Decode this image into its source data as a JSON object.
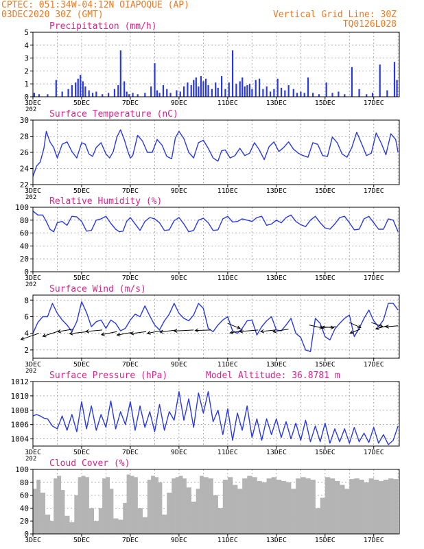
{
  "header": {
    "line1": "CPTEC:   051:34W-04:12N   OIAPOQUE (AP)",
    "line2": "03DEC2020 30Z (GMT)",
    "grid_note": "Vertical Grid Line: 30Z",
    "model": "TQ0126L028"
  },
  "colors": {
    "header_text": "#f07820",
    "panel_title": "#e0208c",
    "line": "#2838e8",
    "bar": "#2838e8",
    "cloud": "#b4b4b4",
    "arrow": "#000000",
    "grid": "#9a9a9a"
  },
  "x_ticks": [
    "3DEC",
    "5DEC",
    "7DEC",
    "9DEC",
    "11DEC",
    "13DEC",
    "15DEC",
    "17DEC"
  ],
  "year_fragment": "202",
  "chart_data": [
    {
      "id": "precip",
      "type": "bar",
      "title": "Precipitation (mm/h)",
      "ylim": [
        0,
        5
      ],
      "yticks": [
        "0",
        "1",
        "2",
        "3",
        "4",
        "5"
      ],
      "x": [
        3.05,
        3.25,
        3.6,
        3.95,
        4.2,
        4.45,
        4.6,
        4.75,
        4.85,
        4.95,
        5.05,
        5.15,
        5.3,
        5.45,
        5.6,
        5.85,
        6.1,
        6.35,
        6.5,
        6.6,
        6.75,
        6.85,
        6.95,
        7.1,
        7.3,
        7.6,
        7.85,
        8.0,
        8.1,
        8.2,
        8.35,
        8.5,
        8.65,
        8.9,
        9.05,
        9.2,
        9.35,
        9.5,
        9.6,
        9.7,
        9.8,
        9.9,
        10.0,
        10.1,
        10.2,
        10.35,
        10.5,
        10.6,
        10.75,
        10.9,
        11.05,
        11.2,
        11.35,
        11.5,
        11.6,
        11.7,
        11.8,
        11.9,
        12.0,
        12.15,
        12.3,
        12.45,
        12.6,
        12.75,
        12.9,
        13.05,
        13.2,
        13.35,
        13.5,
        13.7,
        13.85,
        14.0,
        14.15,
        14.3,
        14.5,
        14.75,
        15.05,
        15.3,
        15.55,
        15.8,
        16.1,
        16.4,
        16.7,
        16.95,
        17.25,
        17.55,
        17.85,
        17.95
      ],
      "values": [
        0.3,
        0.2,
        0.2,
        1.3,
        0.4,
        0.6,
        0.9,
        1.1,
        1.4,
        1.7,
        1.2,
        0.8,
        0.5,
        0.3,
        0.4,
        0.2,
        0.3,
        0.6,
        0.9,
        3.6,
        1.2,
        0.4,
        0.2,
        0.3,
        0.2,
        0.3,
        0.8,
        2.6,
        0.5,
        0.3,
        0.9,
        0.6,
        0.3,
        0.5,
        0.4,
        0.8,
        1.1,
        0.9,
        1.3,
        1.5,
        0.8,
        1.6,
        1.2,
        1.4,
        0.9,
        0.6,
        1.1,
        0.7,
        1.6,
        0.6,
        1.1,
        3.6,
        1.0,
        1.2,
        1.5,
        0.8,
        0.9,
        1.0,
        0.6,
        1.3,
        1.4,
        0.6,
        0.8,
        0.4,
        0.6,
        1.4,
        0.7,
        0.5,
        0.9,
        0.6,
        0.3,
        0.4,
        0.3,
        1.5,
        0.3,
        0.2,
        1.1,
        0.3,
        0.4,
        0.2,
        2.3,
        0.6,
        0.2,
        0.3,
        2.5,
        0.5,
        2.7,
        1.3
      ],
      "xlim": [
        3,
        18.05
      ]
    },
    {
      "id": "temp",
      "type": "line",
      "title": "Surface Temperature (nC)",
      "ylim": [
        22,
        30
      ],
      "yticks": [
        "22",
        "24",
        "26",
        "28",
        "30"
      ],
      "x": [
        3.0,
        3.15,
        3.3,
        3.45,
        3.55,
        3.7,
        3.85,
        4.0,
        4.2,
        4.4,
        4.6,
        4.8,
        5.0,
        5.15,
        5.3,
        5.45,
        5.6,
        5.8,
        6.0,
        6.15,
        6.3,
        6.45,
        6.6,
        6.75,
        6.9,
        7.0,
        7.1,
        7.3,
        7.5,
        7.7,
        7.9,
        8.1,
        8.3,
        8.5,
        8.7,
        8.85,
        9.0,
        9.2,
        9.4,
        9.6,
        9.8,
        10.0,
        10.2,
        10.4,
        10.6,
        10.75,
        10.9,
        11.1,
        11.3,
        11.5,
        11.7,
        11.9,
        12.1,
        12.3,
        12.5,
        12.7,
        12.9,
        13.1,
        13.3,
        13.5,
        13.7,
        13.9,
        14.1,
        14.3,
        14.5,
        14.7,
        14.9,
        15.1,
        15.3,
        15.5,
        15.7,
        15.9,
        16.1,
        16.3,
        16.5,
        16.7,
        16.9,
        17.1,
        17.3,
        17.5,
        17.7,
        17.9,
        18.0
      ],
      "values": [
        23.0,
        24.3,
        24.8,
        26.5,
        28.6,
        27.3,
        26.6,
        25.3,
        27.0,
        27.3,
        26.1,
        25.3,
        27.2,
        27.0,
        25.8,
        25.5,
        26.6,
        27.2,
        25.8,
        25.3,
        26.1,
        27.9,
        28.8,
        27.6,
        26.1,
        25.3,
        25.6,
        28.1,
        27.4,
        26.0,
        26.0,
        27.6,
        26.9,
        25.5,
        25.2,
        27.8,
        28.6,
        27.7,
        26.0,
        25.3,
        27.2,
        27.5,
        26.5,
        25.3,
        24.9,
        26.2,
        26.3,
        25.3,
        25.6,
        26.5,
        25.6,
        25.9,
        27.2,
        26.3,
        25.1,
        26.7,
        27.3,
        26.1,
        26.6,
        27.3,
        26.4,
        25.9,
        25.6,
        25.4,
        27.2,
        27.0,
        25.6,
        25.5,
        27.9,
        27.2,
        25.8,
        25.4,
        26.6,
        28.5,
        27.1,
        25.6,
        25.9,
        28.4,
        27.2,
        25.7,
        28.3,
        27.6,
        26.0
      ],
      "xlim": [
        3,
        18.05
      ]
    },
    {
      "id": "rh",
      "type": "line",
      "title": "Relative Humidity (%)",
      "ylim": [
        0,
        100
      ],
      "yticks": [
        "0",
        "20",
        "40",
        "60",
        "80",
        "100"
      ],
      "x": [
        3.0,
        3.2,
        3.4,
        3.55,
        3.7,
        3.85,
        4.0,
        4.2,
        4.4,
        4.6,
        4.8,
        5.0,
        5.2,
        5.4,
        5.6,
        5.8,
        6.0,
        6.2,
        6.4,
        6.55,
        6.7,
        6.85,
        7.0,
        7.2,
        7.4,
        7.6,
        7.8,
        8.0,
        8.2,
        8.4,
        8.6,
        8.8,
        9.0,
        9.2,
        9.4,
        9.6,
        9.8,
        10.0,
        10.2,
        10.4,
        10.6,
        10.8,
        11.0,
        11.2,
        11.4,
        11.6,
        11.8,
        12.0,
        12.2,
        12.4,
        12.6,
        12.8,
        13.0,
        13.2,
        13.4,
        13.6,
        13.8,
        14.0,
        14.2,
        14.4,
        14.6,
        14.8,
        15.0,
        15.2,
        15.4,
        15.6,
        15.8,
        16.0,
        16.2,
        16.4,
        16.6,
        16.8,
        17.0,
        17.2,
        17.4,
        17.6,
        17.8,
        18.0
      ],
      "values": [
        94,
        88,
        88,
        78,
        66,
        62,
        76,
        78,
        72,
        86,
        85,
        78,
        63,
        64,
        80,
        82,
        86,
        75,
        66,
        62,
        63,
        78,
        84,
        74,
        64,
        78,
        84,
        82,
        76,
        64,
        65,
        79,
        84,
        74,
        62,
        64,
        80,
        83,
        76,
        64,
        65,
        82,
        86,
        77,
        78,
        82,
        80,
        78,
        84,
        86,
        72,
        74,
        80,
        76,
        84,
        88,
        78,
        73,
        70,
        80,
        86,
        76,
        68,
        66,
        74,
        84,
        86,
        76,
        65,
        66,
        82,
        86,
        76,
        66,
        66,
        82,
        80,
        62
      ],
      "xlim": [
        3,
        18.05
      ]
    },
    {
      "id": "wind",
      "type": "line",
      "title": "Surface Wind (m/s)",
      "ylim": [
        1,
        8.6
      ],
      "yticks": [
        "2",
        "4",
        "6",
        "8"
      ],
      "x": [
        3.0,
        3.2,
        3.4,
        3.6,
        3.8,
        4.0,
        4.2,
        4.4,
        4.6,
        4.8,
        5.0,
        5.2,
        5.4,
        5.6,
        5.8,
        6.0,
        6.2,
        6.4,
        6.6,
        6.8,
        7.0,
        7.2,
        7.4,
        7.6,
        7.8,
        8.0,
        8.2,
        8.4,
        8.6,
        8.8,
        9.0,
        9.2,
        9.4,
        9.6,
        9.8,
        10.0,
        10.2,
        10.4,
        10.6,
        10.8,
        11.0,
        11.2,
        11.4,
        11.6,
        11.8,
        12.0,
        12.2,
        12.4,
        12.6,
        12.8,
        13.0,
        13.2,
        13.4,
        13.6,
        13.8,
        14.0,
        14.2,
        14.4,
        14.6,
        14.8,
        15.0,
        15.2,
        15.4,
        15.6,
        15.8,
        16.0,
        16.2,
        16.4,
        16.6,
        16.8,
        17.0,
        17.2,
        17.4,
        17.6,
        17.8,
        18.0
      ],
      "values": [
        4.0,
        5.3,
        6.0,
        6.0,
        7.6,
        6.4,
        5.6,
        5.0,
        4.2,
        5.4,
        7.8,
        6.5,
        4.8,
        5.4,
        5.6,
        4.6,
        5.6,
        5.2,
        4.3,
        4.6,
        5.6,
        6.3,
        6.0,
        7.3,
        6.1,
        5.0,
        4.4,
        5.5,
        6.3,
        7.6,
        6.4,
        5.8,
        5.5,
        6.2,
        7.6,
        7.0,
        4.6,
        4.2,
        5.0,
        5.6,
        6.0,
        4.3,
        4.0,
        4.6,
        5.5,
        5.6,
        3.8,
        4.8,
        5.5,
        6.0,
        4.4,
        4.3,
        5.0,
        5.8,
        4.0,
        3.5,
        2.0,
        1.8,
        5.8,
        5.2,
        3.6,
        3.2,
        4.5,
        5.2,
        5.8,
        6.2,
        3.6,
        4.6,
        5.8,
        6.8,
        5.5,
        4.8,
        5.6,
        7.6,
        7.6,
        6.8
      ],
      "arrows": [
        {
          "x": 3.25,
          "y": 4.0,
          "u": -3.5,
          "v": -1.2
        },
        {
          "x": 4.0,
          "y": 4.2,
          "u": -2.8,
          "v": -0.9
        },
        {
          "x": 4.65,
          "y": 4.5,
          "u": -3.0,
          "v": -0.5
        },
        {
          "x": 5.25,
          "y": 4.2,
          "u": -3.5,
          "v": -0.4
        },
        {
          "x": 5.85,
          "y": 4.4,
          "u": -3.2,
          "v": -0.3
        },
        {
          "x": 6.45,
          "y": 4.2,
          "u": -3.0,
          "v": -0.6
        },
        {
          "x": 7.05,
          "y": 4.1,
          "u": -2.8,
          "v": -0.5
        },
        {
          "x": 7.65,
          "y": 4.2,
          "u": -3.0,
          "v": -0.4
        },
        {
          "x": 8.25,
          "y": 4.3,
          "u": -2.6,
          "v": -0.5
        },
        {
          "x": 8.9,
          "y": 4.4,
          "u": -3.2,
          "v": -0.4
        },
        {
          "x": 9.6,
          "y": 4.4,
          "u": -3.8,
          "v": -0.2
        },
        {
          "x": 10.3,
          "y": 4.4,
          "u": -3.0,
          "v": -0.1
        },
        {
          "x": 11.0,
          "y": 5.2,
          "u": 2.4,
          "v": -1.0
        },
        {
          "x": 11.65,
          "y": 4.3,
          "u": -2.6,
          "v": -0.4
        },
        {
          "x": 12.25,
          "y": 4.4,
          "u": -3.6,
          "v": -0.3
        },
        {
          "x": 12.95,
          "y": 4.4,
          "u": -2.8,
          "v": -0.3
        },
        {
          "x": 13.5,
          "y": 4.5,
          "u": -3.0,
          "v": -0.5
        },
        {
          "x": 14.35,
          "y": 5.0,
          "u": 2.6,
          "v": -0.6
        },
        {
          "x": 14.85,
          "y": 4.8,
          "u": 2.4,
          "v": -0.2
        },
        {
          "x": 15.45,
          "y": 4.8,
          "u": -2.8,
          "v": -0.2
        },
        {
          "x": 16.0,
          "y": 5.3,
          "u": 2.2,
          "v": -1.0
        },
        {
          "x": 16.45,
          "y": 4.5,
          "u": -2.0,
          "v": -0.8
        },
        {
          "x": 16.9,
          "y": 5.3,
          "u": 2.2,
          "v": -0.8
        },
        {
          "x": 17.55,
          "y": 4.9,
          "u": -2.2,
          "v": -0.6
        },
        {
          "x": 18.0,
          "y": 4.9,
          "u": -2.4,
          "v": -0.2
        }
      ],
      "xlim": [
        3,
        18.05
      ]
    },
    {
      "id": "pressure",
      "type": "line",
      "title": "Surface Pressure (hPa)",
      "annotation": "Model Altitude: 36.8781 m",
      "ylim": [
        1003,
        1012
      ],
      "yticks": [
        "1004",
        "1006",
        "1008",
        "1010",
        "1012"
      ],
      "x": [
        3.0,
        3.15,
        3.3,
        3.45,
        3.6,
        3.8,
        4.0,
        4.2,
        4.4,
        4.6,
        4.8,
        5.0,
        5.2,
        5.4,
        5.6,
        5.8,
        6.0,
        6.2,
        6.4,
        6.6,
        6.8,
        7.0,
        7.2,
        7.4,
        7.6,
        7.8,
        8.0,
        8.2,
        8.4,
        8.6,
        8.8,
        9.0,
        9.2,
        9.4,
        9.6,
        9.8,
        10.0,
        10.2,
        10.4,
        10.6,
        10.8,
        11.0,
        11.2,
        11.4,
        11.6,
        11.8,
        12.0,
        12.2,
        12.4,
        12.6,
        12.8,
        13.0,
        13.2,
        13.4,
        13.6,
        13.8,
        14.0,
        14.2,
        14.4,
        14.6,
        14.8,
        15.0,
        15.2,
        15.4,
        15.6,
        15.8,
        16.0,
        16.2,
        16.4,
        16.6,
        16.8,
        17.0,
        17.2,
        17.4,
        17.6,
        17.8,
        18.0
      ],
      "values": [
        1007.2,
        1007.4,
        1007.2,
        1006.9,
        1006.8,
        1005.8,
        1005.4,
        1007.2,
        1005.2,
        1007.4,
        1005.0,
        1009.2,
        1005.4,
        1008.6,
        1005.2,
        1007.4,
        1005.6,
        1009.3,
        1005.4,
        1007.8,
        1006.0,
        1009.2,
        1005.2,
        1008.6,
        1005.6,
        1007.8,
        1005.0,
        1008.8,
        1005.2,
        1007.8,
        1006.6,
        1010.6,
        1006.6,
        1009.6,
        1005.6,
        1010.4,
        1007.6,
        1010.6,
        1006.4,
        1008.0,
        1004.6,
        1008.2,
        1003.8,
        1007.6,
        1005.2,
        1008.6,
        1004.2,
        1006.8,
        1003.8,
        1006.8,
        1004.6,
        1006.8,
        1004.2,
        1006.4,
        1004.0,
        1006.2,
        1003.8,
        1006.6,
        1003.6,
        1005.8,
        1003.6,
        1006.2,
        1003.4,
        1005.4,
        1003.6,
        1005.4,
        1003.4,
        1005.6,
        1003.6,
        1004.8,
        1003.5,
        1005.6,
        1003.4,
        1004.6,
        1003.2,
        1003.8,
        1005.8
      ],
      "xlim": [
        3,
        18.05
      ]
    },
    {
      "id": "cloud",
      "type": "area",
      "title": "Cloud Cover (%)",
      "ylim": [
        0,
        100
      ],
      "yticks": [
        "0",
        "20",
        "40",
        "60",
        "80",
        "100"
      ],
      "x": [
        3.0,
        3.15,
        3.3,
        3.5,
        3.7,
        3.85,
        4.0,
        4.15,
        4.3,
        4.5,
        4.7,
        4.85,
        5.0,
        5.15,
        5.3,
        5.5,
        5.7,
        5.85,
        6.0,
        6.15,
        6.3,
        6.5,
        6.7,
        6.85,
        7.0,
        7.15,
        7.3,
        7.5,
        7.7,
        7.85,
        8.0,
        8.15,
        8.3,
        8.5,
        8.7,
        8.85,
        9.0,
        9.15,
        9.3,
        9.5,
        9.7,
        9.85,
        10.0,
        10.2,
        10.4,
        10.6,
        10.8,
        11.0,
        11.2,
        11.4,
        11.6,
        11.8,
        12.0,
        12.2,
        12.4,
        12.6,
        12.8,
        13.0,
        13.2,
        13.4,
        13.6,
        13.8,
        14.0,
        14.2,
        14.4,
        14.6,
        14.8,
        15.0,
        15.2,
        15.4,
        15.6,
        15.8,
        16.0,
        16.2,
        16.4,
        16.6,
        16.8,
        17.0,
        17.2,
        17.4,
        17.6,
        17.8,
        18.0
      ],
      "values": [
        70,
        84,
        64,
        30,
        20,
        86,
        90,
        68,
        28,
        18,
        60,
        88,
        90,
        88,
        40,
        20,
        40,
        86,
        88,
        70,
        24,
        22,
        48,
        92,
        90,
        88,
        40,
        26,
        84,
        90,
        88,
        80,
        30,
        64,
        86,
        88,
        90,
        86,
        72,
        50,
        70,
        90,
        88,
        86,
        60,
        40,
        84,
        88,
        76,
        70,
        86,
        90,
        88,
        82,
        80,
        86,
        88,
        84,
        82,
        80,
        70,
        86,
        88,
        86,
        84,
        40,
        56,
        88,
        86,
        82,
        76,
        70,
        85,
        86,
        84,
        80,
        86,
        84,
        82,
        84,
        86,
        85,
        88
      ],
      "xlim": [
        3,
        18.05
      ]
    }
  ]
}
